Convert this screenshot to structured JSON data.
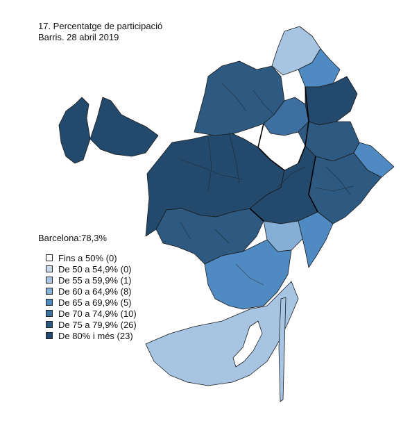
{
  "title": "17. Percentatge de participació",
  "subtitle": "Barris. 28 abril 2019",
  "summary": "Barcelona:78,3%",
  "legend": [
    {
      "label": "Fins a 50% (0)",
      "color": "#ffffff"
    },
    {
      "label": "De 50 a 54,9% (0)",
      "color": "#c9dcee"
    },
    {
      "label": "De 55 a 59,9% (1)",
      "color": "#a7c5e3"
    },
    {
      "label": "De 60 a 64,9% (8)",
      "color": "#86afd8"
    },
    {
      "label": "De 65 a 69,9% (5)",
      "color": "#4f8bc2"
    },
    {
      "label": "De 70 a 74,9% (10)",
      "color": "#3d6fa0"
    },
    {
      "label": "De 75 a 79,9% (26)",
      "color": "#2e5a82"
    },
    {
      "label": "De 80% i més (23)",
      "color": "#234a6c"
    }
  ],
  "chart_data": {
    "type": "choropleth",
    "title": "17. Percentatge de participació",
    "subtitle": "Barris. 28 abril 2019",
    "overall": "Barcelona:78,3%",
    "classes": [
      {
        "range": "Fins a 50%",
        "count": 0
      },
      {
        "range": "De 50 a 54,9%",
        "count": 0
      },
      {
        "range": "De 55 a 59,9%",
        "count": 1
      },
      {
        "range": "De 60 a 64,9%",
        "count": 8
      },
      {
        "range": "De 65 a 69,9%",
        "count": 5
      },
      {
        "range": "De 70 a 74,9%",
        "count": 10
      },
      {
        "range": "De 75 a 79,9%",
        "count": 26
      },
      {
        "range": "De 80% i més",
        "count": 23
      }
    ]
  }
}
